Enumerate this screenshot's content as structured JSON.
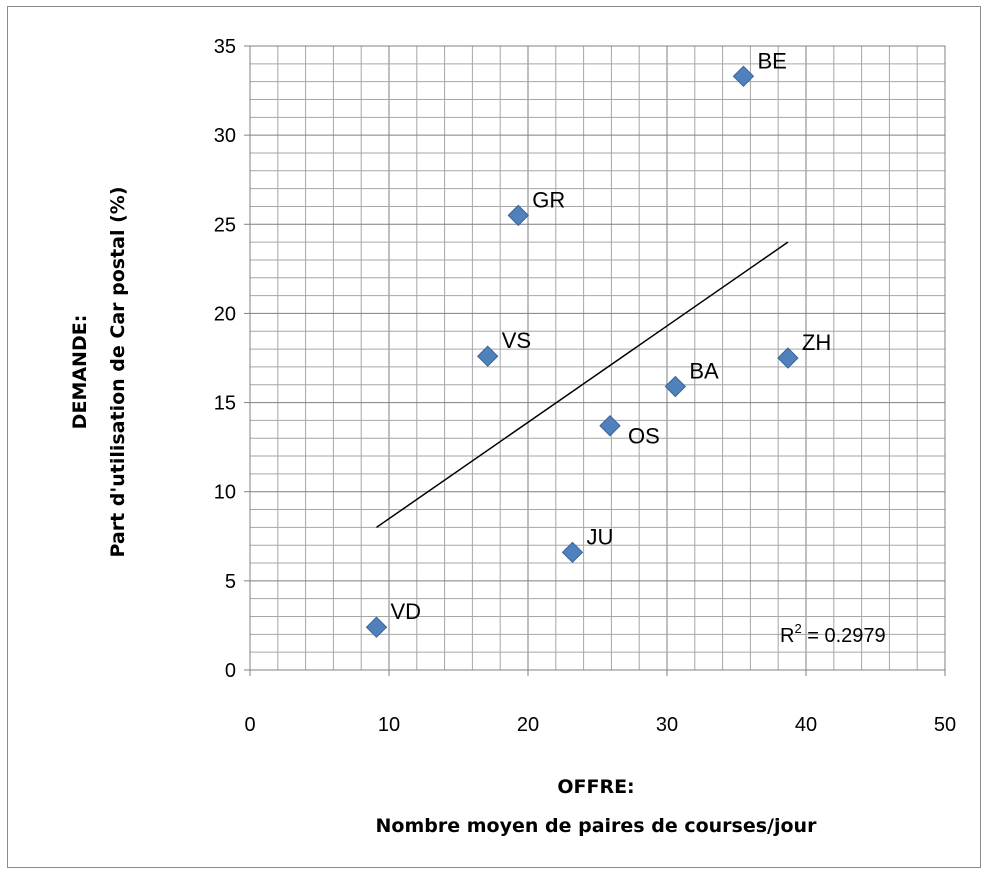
{
  "chart_data": {
    "type": "scatter",
    "xlabel_line1": "OFFRE:",
    "xlabel_line2": "Nombre moyen de paires de courses/jour",
    "ylabel_line1": "DEMANDE:",
    "ylabel_line2": "Part d'utilisation de Car postal (%)",
    "xlim": [
      0,
      50
    ],
    "ylim": [
      0,
      35
    ],
    "xticks": [
      "0",
      "10",
      "20",
      "30",
      "40",
      "50"
    ],
    "yticks": [
      "0",
      "5",
      "10",
      "15",
      "20",
      "25",
      "30",
      "35"
    ],
    "x_major_step": 10,
    "x_minor_step": 2,
    "y_major_step": 5,
    "y_minor_step": 1,
    "grid": true,
    "marker_color": "#4f81bd",
    "trendline_color": "#000000",
    "points": [
      {
        "label": "BE",
        "x": 35.5,
        "y": 33.3
      },
      {
        "label": "GR",
        "x": 19.3,
        "y": 25.5
      },
      {
        "label": "VS",
        "x": 17.1,
        "y": 17.6
      },
      {
        "label": "ZH",
        "x": 38.7,
        "y": 17.5
      },
      {
        "label": "BA",
        "x": 30.6,
        "y": 15.9
      },
      {
        "label": "OS",
        "x": 25.9,
        "y": 13.7
      },
      {
        "label": "JU",
        "x": 23.2,
        "y": 6.6
      },
      {
        "label": "VD",
        "x": 9.1,
        "y": 2.4
      }
    ],
    "trendline": {
      "x": [
        9.1,
        38.7
      ],
      "y": [
        8.0,
        24.0
      ]
    },
    "r_squared_prefix": "R",
    "r_squared_sup": "2",
    "r_squared_value": " = 0.2979"
  }
}
